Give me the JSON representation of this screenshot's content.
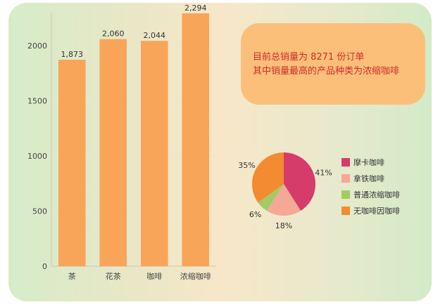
{
  "summary": {
    "line1": "目前总销量为 8271 份订单",
    "line2": "其中销量最高的产品种类为浓缩咖啡"
  },
  "colors": {
    "bar": "#f8a55a",
    "pie": [
      "#d63c6a",
      "#f5a895",
      "#a3cb63",
      "#f28b31"
    ]
  },
  "chart_data": [
    {
      "type": "bar",
      "categories": [
        "茶",
        "花茶",
        "咖啡",
        "浓缩咖啡"
      ],
      "values": [
        1873,
        2060,
        2044,
        2294
      ],
      "value_labels": [
        "1,873",
        "2,060",
        "2,044",
        "2,294"
      ],
      "yticks": [
        "0",
        "500",
        "1000",
        "1500",
        "2000"
      ],
      "ylim": [
        0,
        2300
      ],
      "grid": true
    },
    {
      "type": "pie",
      "labels": [
        "摩卡咖啡",
        "拿铁咖啡",
        "普通浓缩咖啡",
        "无咖啡因咖啡"
      ],
      "values": [
        41,
        18,
        6,
        35
      ],
      "pct_labels": [
        "41%",
        "18%",
        "6%",
        "35%"
      ],
      "legend_position": "right"
    }
  ]
}
